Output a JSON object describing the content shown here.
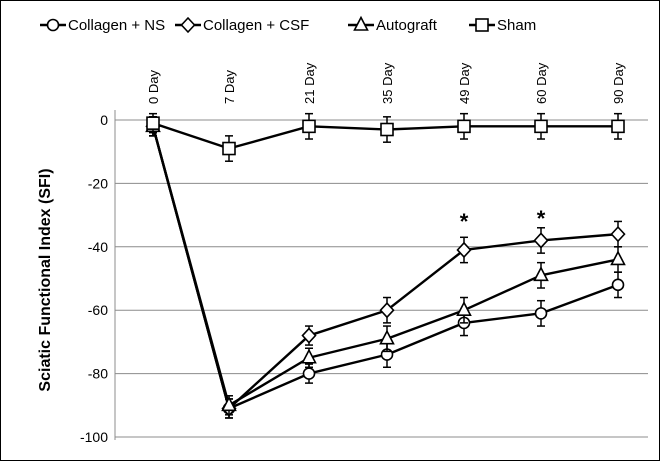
{
  "chart_data": {
    "type": "line",
    "x": [
      "0 Day",
      "7 Day",
      "21 Day",
      "35 Day",
      "49 Day",
      "60 Day",
      "90 Day"
    ],
    "ylabel": "Sciatic Functional Index (SFI)",
    "ylim": [
      -100,
      0
    ],
    "yticks": [
      0,
      -20,
      -40,
      -60,
      -80,
      -100
    ],
    "ytick_labels": [
      "0",
      "-20",
      "-40",
      "-60",
      "-80",
      "-100"
    ],
    "grid": true,
    "legend_position": "top",
    "series": [
      {
        "name": "Collagen + NS",
        "marker": "circle",
        "values": [
          -2,
          -91,
          -80,
          -74,
          -64,
          -61,
          -52
        ],
        "errors": [
          3,
          3,
          3,
          4,
          4,
          4,
          4
        ]
      },
      {
        "name": "Collagen + CSF",
        "marker": "diamond",
        "values": [
          -2,
          -91,
          -68,
          -60,
          -41,
          -38,
          -36
        ],
        "errors": [
          3,
          3,
          3,
          4,
          4,
          4,
          4
        ]
      },
      {
        "name": "Autograft",
        "marker": "triangle",
        "values": [
          -2,
          -90,
          -75,
          -69,
          -60,
          -49,
          -44
        ],
        "errors": [
          3,
          3,
          3,
          4,
          4,
          4,
          4
        ]
      },
      {
        "name": "Sham",
        "marker": "square",
        "values": [
          -1,
          -9,
          -2,
          -3,
          -2,
          -2,
          -2
        ],
        "errors": [
          3,
          4,
          4,
          4,
          4,
          4,
          4
        ]
      }
    ],
    "annotations": [
      {
        "text": "*",
        "x": "49 Day",
        "y": -30
      },
      {
        "text": "*",
        "x": "60 Day",
        "y": -29
      }
    ]
  }
}
